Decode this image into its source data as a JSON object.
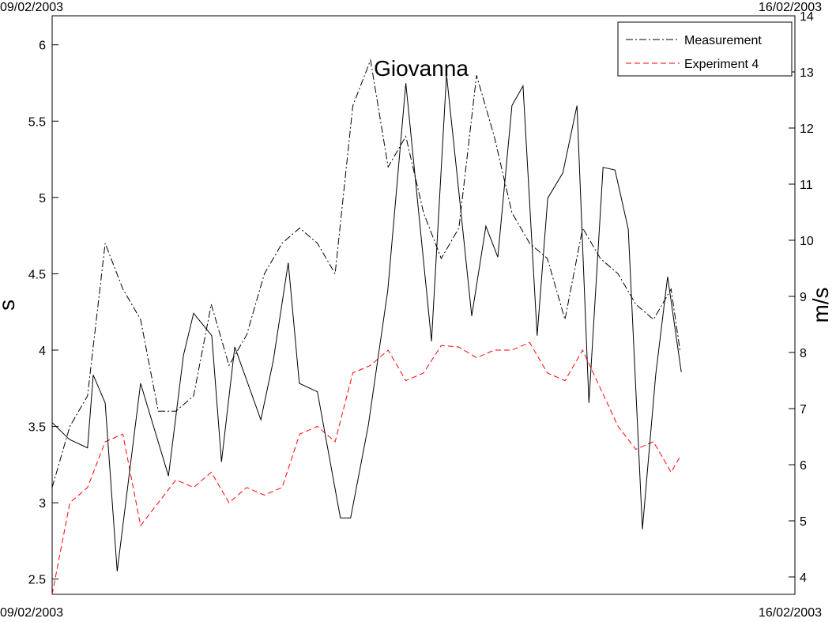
{
  "chart_data": {
    "type": "line",
    "annotation": "Giovanna",
    "ylabel": "s",
    "y2label": "m/s",
    "xlim": [
      0,
      168
    ],
    "xticks": [
      {
        "value": 0,
        "label": "09/02/2003"
      },
      {
        "value": 168,
        "label": "16/02/2003"
      }
    ],
    "ylim": [
      2.4,
      6.19
    ],
    "yticks": [
      2.5,
      3,
      3.5,
      4,
      4.5,
      5,
      5.5,
      6
    ],
    "y2lim": [
      3.69,
      14
    ],
    "y2ticks": [
      4,
      5,
      6,
      7,
      8,
      9,
      10,
      11,
      12,
      13,
      14
    ],
    "legend": "upper right",
    "series": [
      {
        "name": "Measurement",
        "color": "#000000",
        "style": "dashdot",
        "x": [
          0,
          4,
          8,
          12,
          16,
          20,
          24,
          28,
          32,
          36,
          40,
          44,
          48,
          52,
          56,
          60,
          64,
          68,
          72,
          76,
          80,
          84,
          88,
          92,
          96,
          100,
          104,
          108,
          112,
          116,
          120,
          124,
          128,
          132,
          136,
          140,
          142
        ],
        "values": [
          3.1,
          3.5,
          3.7,
          4.7,
          4.4,
          4.2,
          3.6,
          3.6,
          3.7,
          4.3,
          3.9,
          4.1,
          4.5,
          4.7,
          4.8,
          4.7,
          4.5,
          5.6,
          5.9,
          5.2,
          5.4,
          4.9,
          4.6,
          4.8,
          5.8,
          5.4,
          4.9,
          4.7,
          4.6,
          4.2,
          4.8,
          4.6,
          4.5,
          4.3,
          4.2,
          4.4,
          4.0
        ]
      },
      {
        "name": "Experiment 4",
        "color": "#ff0000",
        "style": "dashed",
        "x": [
          0,
          4,
          8,
          12,
          16,
          20,
          24,
          28,
          32,
          36,
          40,
          44,
          48,
          52,
          56,
          60,
          64,
          68,
          72,
          76,
          80,
          84,
          88,
          92,
          96,
          100,
          104,
          108,
          112,
          116,
          120,
          124,
          128,
          132,
          136,
          140,
          142
        ],
        "values": [
          2.4,
          3.0,
          3.1,
          3.4,
          3.45,
          2.85,
          3.0,
          3.15,
          3.1,
          3.2,
          3.0,
          3.1,
          3.05,
          3.1,
          3.45,
          3.5,
          3.4,
          3.85,
          3.9,
          4.0,
          3.8,
          3.85,
          4.03,
          4.02,
          3.95,
          4.0,
          4.0,
          4.05,
          3.85,
          3.8,
          4.0,
          3.75,
          3.5,
          3.35,
          3.4,
          3.2,
          3.3
        ]
      },
      {
        "color": "#000000",
        "style": "solid",
        "axis": "y2",
        "x": [
          0,
          3.9,
          8.0,
          9.3,
          12.0,
          14.7,
          20.0,
          26.3,
          29.7,
          32.0,
          36.1,
          38.3,
          41.3,
          47.2,
          50.0,
          53.4,
          55.9,
          60.0,
          65.2,
          67.5,
          71.5,
          75.9,
          80.0,
          85.8,
          89.2,
          92.0,
          94.9,
          98.1,
          100.8,
          104.0,
          106.5,
          109.7,
          112.1,
          115.5,
          118.7,
          121.4,
          124.6,
          127.3,
          130.3,
          133.5,
          136.5,
          139.2,
          142.3
        ],
        "values": [
          6.75,
          6.45,
          6.3,
          7.6,
          7.1,
          4.1,
          7.45,
          5.8,
          7.95,
          8.7,
          8.3,
          6.05,
          8.1,
          6.8,
          7.85,
          9.6,
          7.45,
          7.3,
          5.05,
          5.05,
          6.7,
          9.1,
          12.8,
          8.2,
          12.95,
          10.85,
          8.65,
          10.25,
          9.7,
          12.4,
          12.75,
          8.3,
          10.75,
          11.2,
          12.4,
          7.1,
          11.3,
          11.25,
          10.2,
          4.85,
          7.6,
          9.35,
          7.65
        ]
      }
    ]
  }
}
